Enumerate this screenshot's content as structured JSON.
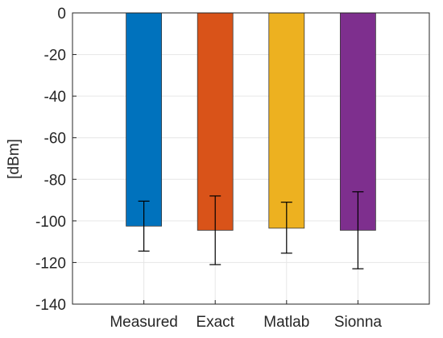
{
  "chart_data": {
    "type": "bar",
    "categories": [
      "Measured",
      "Exact",
      "Matlab",
      "Sionna"
    ],
    "values": [
      -102.5,
      -104.5,
      -103.5,
      -104.5
    ],
    "error_low": [
      -114.5,
      -121,
      -115.5,
      -123
    ],
    "error_high": [
      -90.5,
      -88,
      -91,
      -86
    ],
    "colors": [
      "#0072BD",
      "#D95319",
      "#EDB120",
      "#7E2F8E"
    ],
    "title": "",
    "xlabel": "",
    "ylabel": "[dBm]",
    "ylim": [
      -140,
      0
    ],
    "yticks": [
      0,
      -20,
      -40,
      -60,
      -80,
      -100,
      -120,
      -140
    ],
    "ytick_labels": [
      "0",
      "-20",
      "-40",
      "-60",
      "-80",
      "-100",
      "-120",
      "-140"
    ],
    "grid": true
  }
}
